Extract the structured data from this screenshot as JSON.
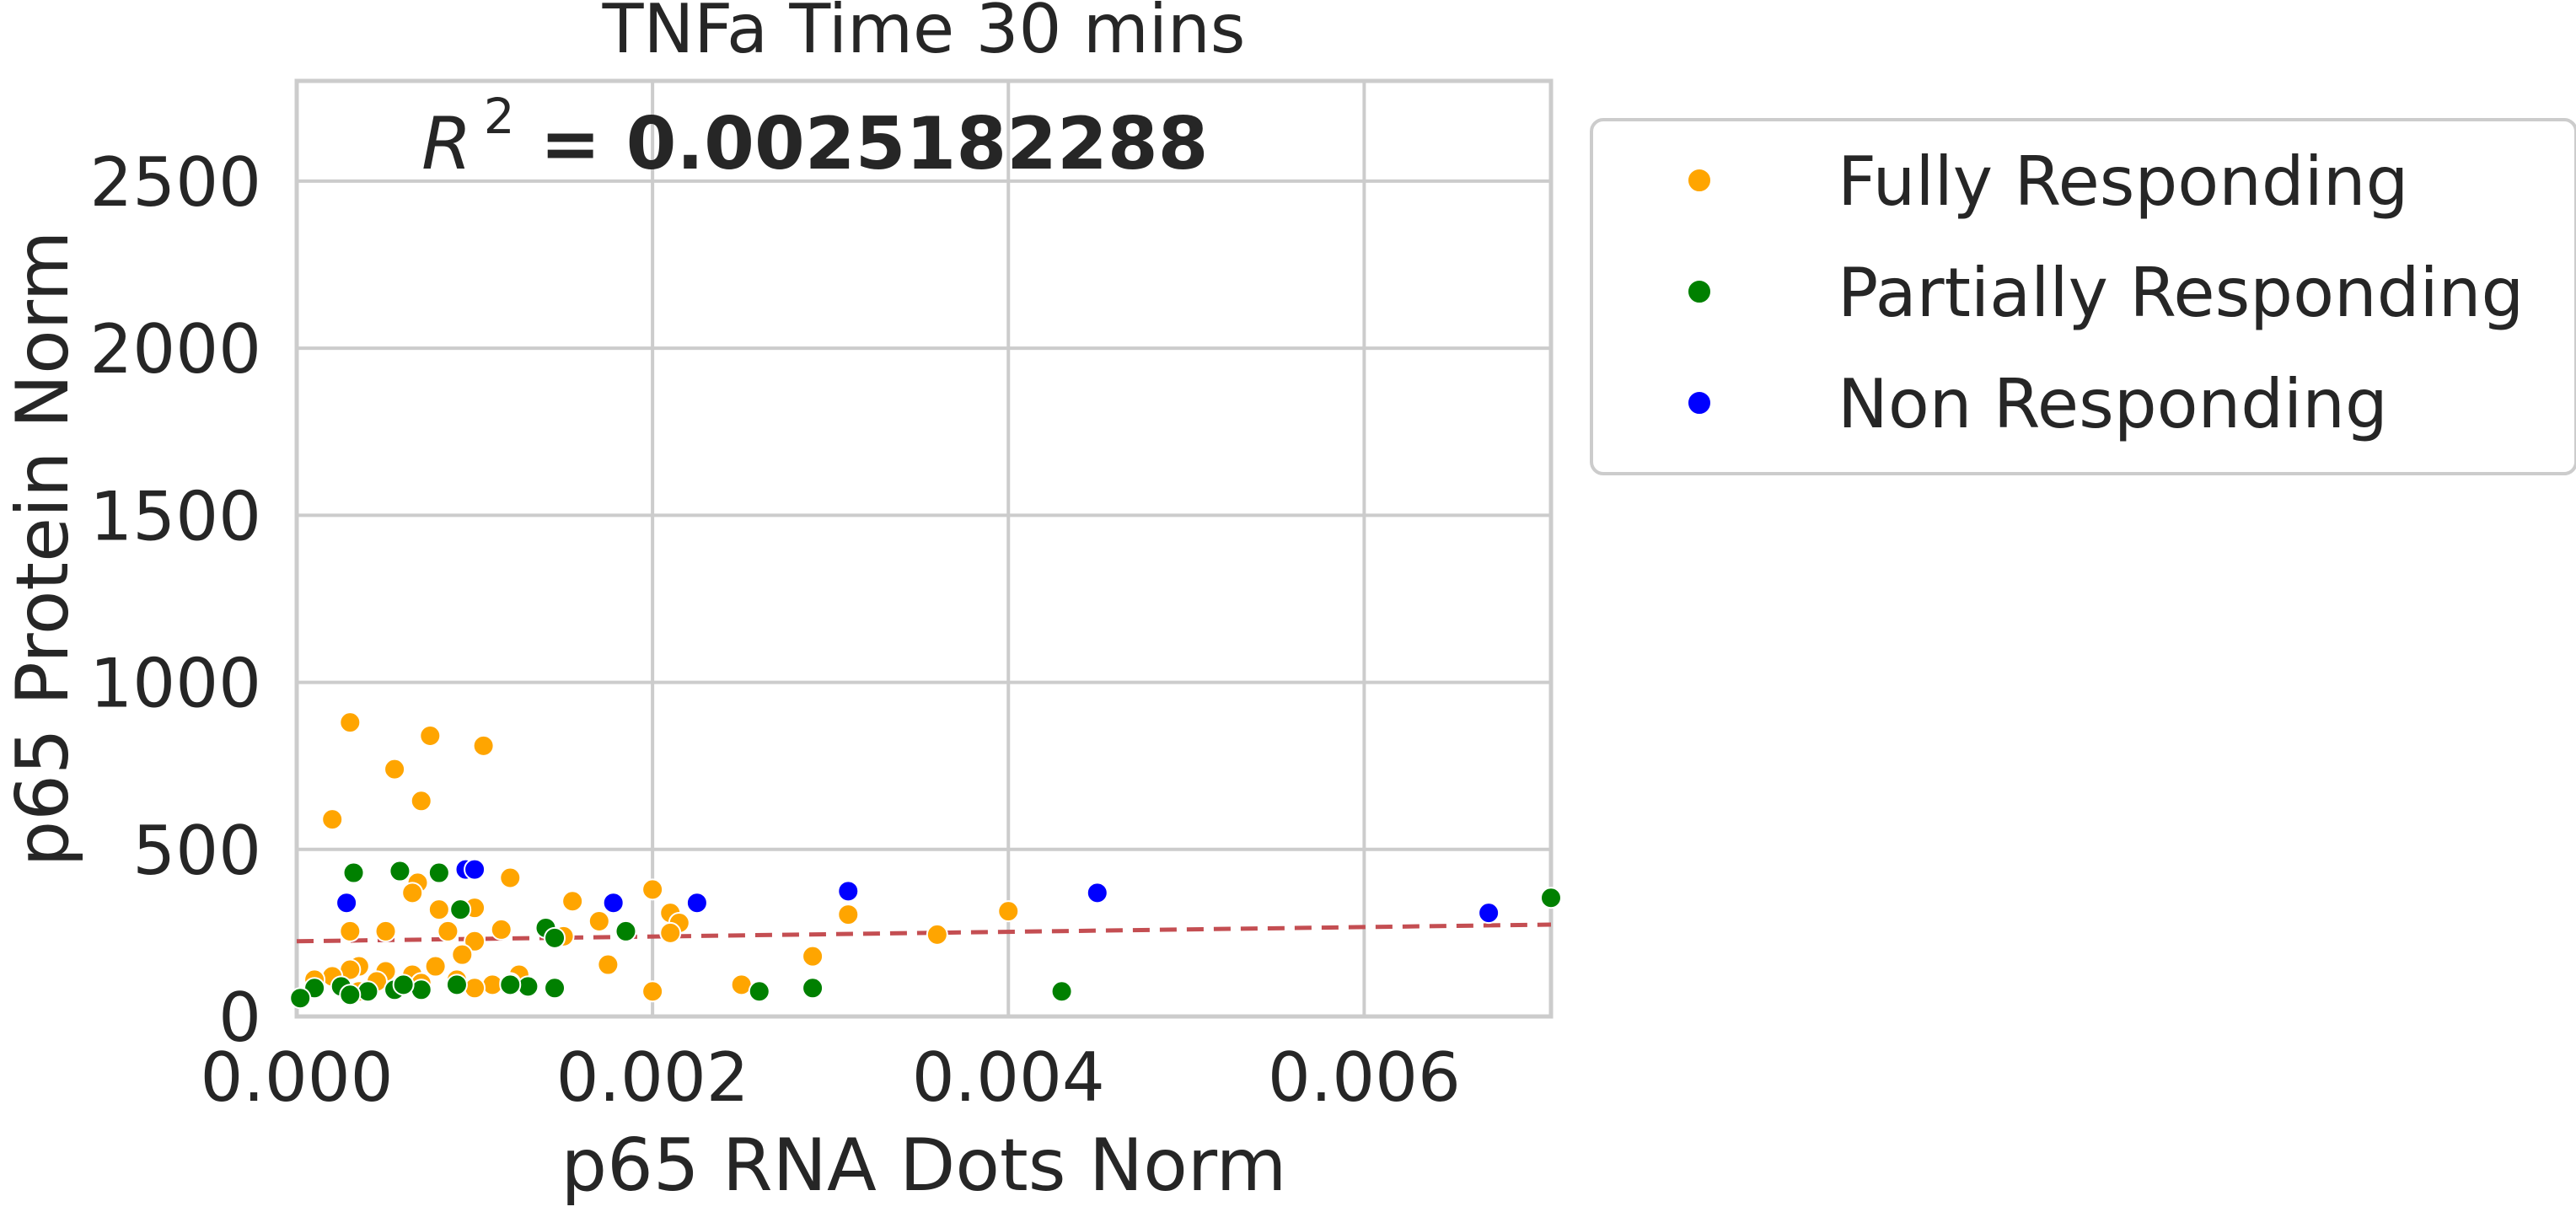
{
  "chart_data": {
    "type": "scatter",
    "title": "TNFa Time 30 mins",
    "annotation": {
      "prefix": "R",
      "superscript": "2",
      "value": " = 0.0025182288"
    },
    "xlabel": "p65 RNA Dots Norm",
    "ylabel": "p65 Protein Norm",
    "xlim": [
      0,
      0.00705
    ],
    "ylim": [
      0,
      2800
    ],
    "xticks": [
      0,
      0.002,
      0.004,
      0.006
    ],
    "xtick_labels": [
      "0.000",
      "0.002",
      "0.004",
      "0.006"
    ],
    "yticks": [
      0,
      500,
      1000,
      1500,
      2000,
      2500
    ],
    "ytick_labels": [
      "0",
      "500",
      "1000",
      "1500",
      "2000",
      "2500"
    ],
    "grid": true,
    "legend_position": "outside-right-top",
    "trendline": {
      "x": [
        0,
        0.00705
      ],
      "y": [
        225,
        275
      ],
      "color": "#c44e52",
      "style": "dashed"
    },
    "series": [
      {
        "name": "Fully Responding",
        "color": "#FFA500",
        "points": [
          [
            0.0003,
            880
          ],
          [
            0.00075,
            840
          ],
          [
            0.00105,
            810
          ],
          [
            0.00055,
            740
          ],
          [
            0.0007,
            645
          ],
          [
            0.0002,
            590
          ],
          [
            0.0012,
            415
          ],
          [
            0.00068,
            400
          ],
          [
            0.00065,
            370
          ],
          [
            0.002,
            380
          ],
          [
            0.00155,
            345
          ],
          [
            0.001,
            325
          ],
          [
            0.0008,
            320
          ],
          [
            0.0021,
            310
          ],
          [
            0.0031,
            305
          ],
          [
            0.004,
            315
          ],
          [
            0.0017,
            285
          ],
          [
            0.00215,
            280
          ],
          [
            0.00115,
            260
          ],
          [
            0.00085,
            255
          ],
          [
            0.0005,
            255
          ],
          [
            0.0003,
            255
          ],
          [
            0.0015,
            240
          ],
          [
            0.0036,
            245
          ],
          [
            0.0021,
            250
          ],
          [
            0.001,
            225
          ],
          [
            0.00093,
            185
          ],
          [
            0.0029,
            180
          ],
          [
            0.00175,
            155
          ],
          [
            0.00078,
            150
          ],
          [
            0.00035,
            150
          ],
          [
            0.0003,
            140
          ],
          [
            0.0005,
            135
          ],
          [
            0.00065,
            125
          ],
          [
            0.0002,
            120
          ],
          [
            0.00125,
            125
          ],
          [
            0.0001,
            110
          ],
          [
            0.00045,
            105
          ],
          [
            0.0007,
            100
          ],
          [
            0.0009,
            110
          ],
          [
            0.0011,
            95
          ],
          [
            0.00025,
            85
          ],
          [
            0.0013,
            85
          ],
          [
            0.0025,
            95
          ],
          [
            0.002,
            75
          ],
          [
            0.001,
            85
          ],
          [
            0.00035,
            75
          ],
          [
            0.0012,
            100
          ]
        ]
      },
      {
        "name": "Partially Responding",
        "color": "#008000",
        "points": [
          [
            0.00032,
            430
          ],
          [
            0.00058,
            435
          ],
          [
            0.0008,
            430
          ],
          [
            0.00092,
            320
          ],
          [
            0.0014,
            265
          ],
          [
            0.00145,
            235
          ],
          [
            0.00185,
            255
          ],
          [
            0.0043,
            75
          ],
          [
            0.0029,
            85
          ],
          [
            0.0026,
            75
          ],
          [
            0.0013,
            90
          ],
          [
            0.00145,
            85
          ],
          [
            0.0007,
            80
          ],
          [
            0.00055,
            80
          ],
          [
            0.0004,
            75
          ],
          [
            0.0001,
            85
          ],
          [
            0.00025,
            90
          ],
          [
            0.0006,
            95
          ],
          [
            0.0009,
            95
          ],
          [
            0.0012,
            95
          ],
          [
            0.00705,
            355
          ],
          [
            2e-05,
            55
          ],
          [
            0.0003,
            65
          ]
        ]
      },
      {
        "name": "Non Responding",
        "color": "#0000FF",
        "points": [
          [
            0.00028,
            340
          ],
          [
            0.00095,
            440
          ],
          [
            0.001,
            440
          ],
          [
            0.00178,
            340
          ],
          [
            0.00225,
            340
          ],
          [
            0.0031,
            375
          ],
          [
            0.0045,
            370
          ],
          [
            0.0067,
            310
          ]
        ]
      }
    ]
  }
}
